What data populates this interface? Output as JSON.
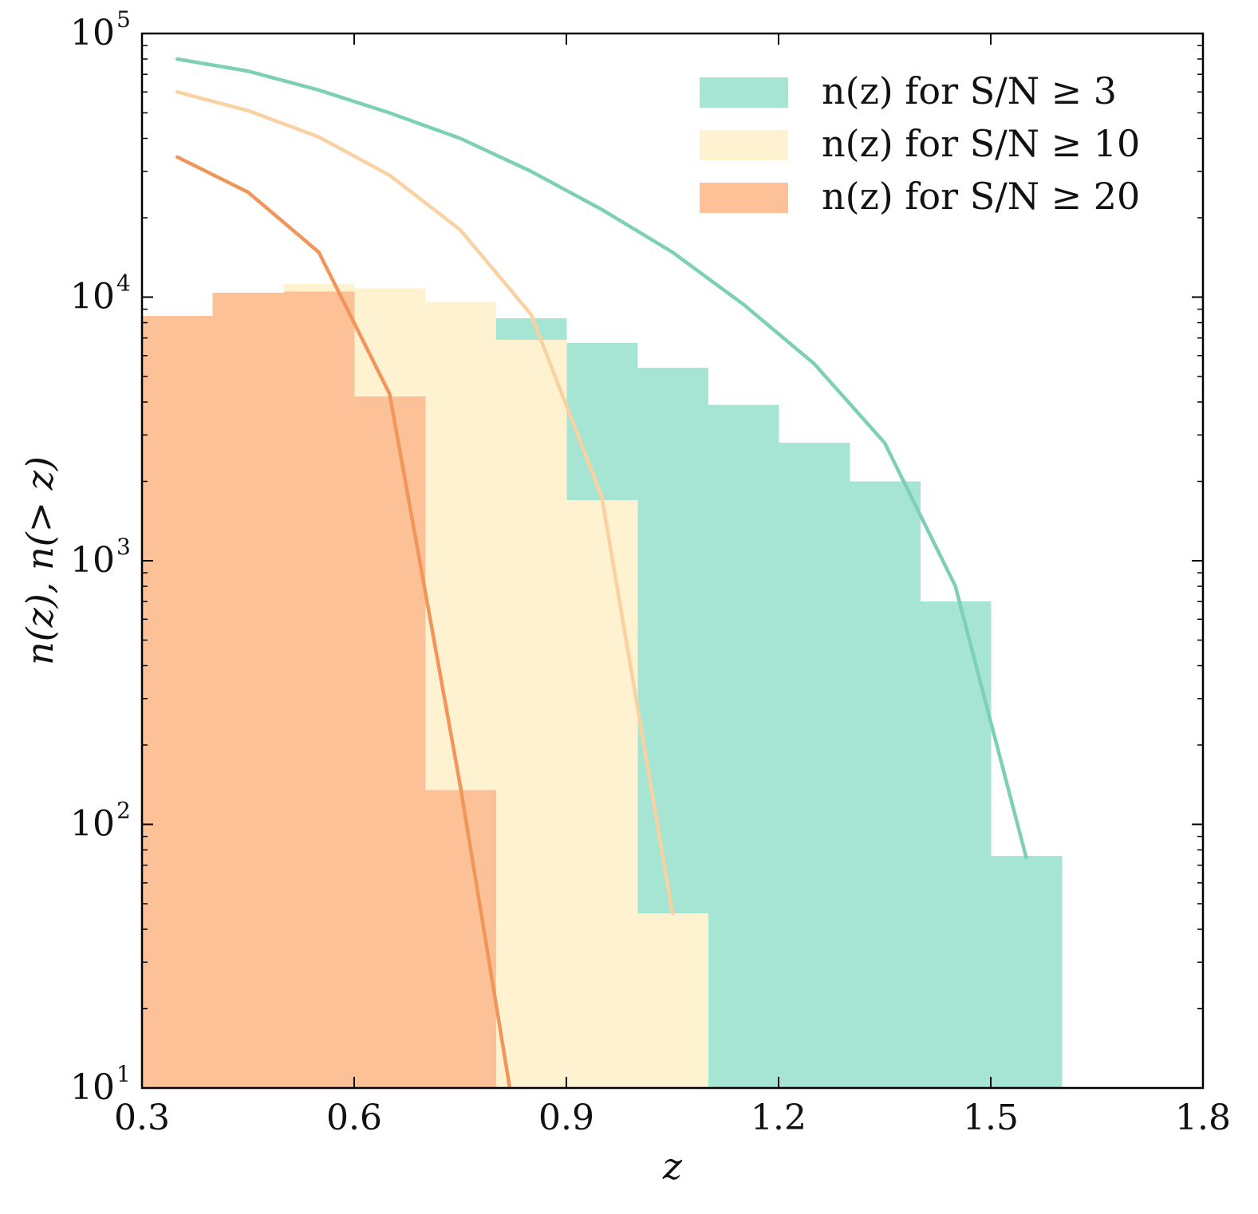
{
  "chart_data": {
    "type": "bar",
    "x_scale": "linear",
    "y_scale": "log",
    "xlim": [
      0.3,
      1.8
    ],
    "ylim": [
      10,
      100000
    ],
    "xlabel": "z",
    "ylabel": "n(z), n(> z)",
    "grid": false,
    "legend_position": "top-right",
    "x_ticks": [
      {
        "value": 0.3,
        "label": "0.3"
      },
      {
        "value": 0.6,
        "label": "0.6"
      },
      {
        "value": 0.9,
        "label": "0.9"
      },
      {
        "value": 1.2,
        "label": "1.2"
      },
      {
        "value": 1.5,
        "label": "1.5"
      },
      {
        "value": 1.8,
        "label": "1.8"
      }
    ],
    "y_ticks": [
      {
        "value": 10,
        "base": "10",
        "exp": "1"
      },
      {
        "value": 100,
        "base": "10",
        "exp": "2"
      },
      {
        "value": 1000,
        "base": "10",
        "exp": "3"
      },
      {
        "value": 10000,
        "base": "10",
        "exp": "4"
      },
      {
        "value": 100000,
        "base": "10",
        "exp": "5"
      }
    ],
    "series": [
      {
        "name": "n(z) for S/N ≥ 3",
        "color": "#a6e4d3",
        "line_color": "#7dd0b4",
        "bin_edges": [
          0.3,
          0.4,
          0.5,
          0.6,
          0.7,
          0.8,
          0.9,
          1.0,
          1.1,
          1.2,
          1.3,
          1.4,
          1.5,
          1.6
        ],
        "counts": [
          8500,
          10400,
          11000,
          10600,
          9600,
          8300,
          6700,
          5400,
          3900,
          2800,
          2000,
          700,
          76
        ],
        "cumulative": {
          "x": [
            0.35,
            0.45,
            0.55,
            0.65,
            0.75,
            0.85,
            0.95,
            1.05,
            1.15,
            1.25,
            1.35,
            1.45,
            1.55
          ],
          "y": [
            80000,
            72000,
            61000,
            50000,
            40000,
            30000,
            21500,
            14800,
            9400,
            5600,
            2800,
            800,
            75
          ]
        }
      },
      {
        "name": "n(z) for S/N ≥ 10",
        "color": "#fff2d1",
        "line_color": "#fad1a0",
        "bin_edges": [
          0.3,
          0.4,
          0.5,
          0.6,
          0.7,
          0.8,
          0.9,
          1.0,
          1.1
        ],
        "counts": [
          8500,
          10400,
          11200,
          10800,
          9600,
          6900,
          1700,
          46
        ],
        "cumulative": {
          "x": [
            0.35,
            0.45,
            0.55,
            0.65,
            0.75,
            0.85,
            0.95,
            1.05
          ],
          "y": [
            60000,
            51000,
            40500,
            29000,
            18000,
            8600,
            1750,
            46
          ]
        }
      },
      {
        "name": "n(z) for S/N ≥ 20",
        "color": "#fdc197",
        "line_color": "#f2955a",
        "bin_edges": [
          0.3,
          0.4,
          0.5,
          0.6,
          0.7,
          0.8
        ],
        "counts": [
          8500,
          10400,
          10500,
          4200,
          135
        ],
        "cumulative": {
          "x": [
            0.35,
            0.45,
            0.55,
            0.65,
            0.75,
            0.82
          ],
          "y": [
            34000,
            25000,
            14800,
            4300,
            140,
            10
          ]
        }
      }
    ]
  }
}
